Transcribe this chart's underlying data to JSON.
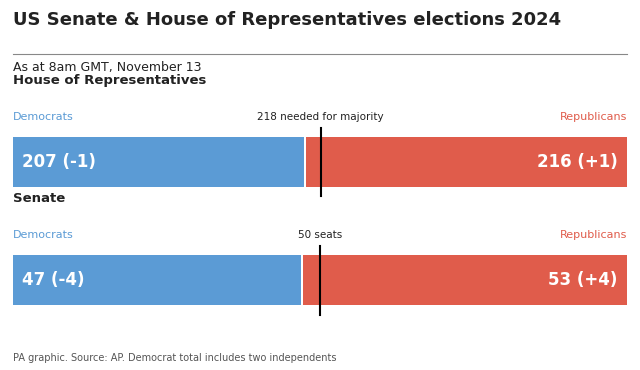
{
  "title": "US Senate & House of Representatives elections 2024",
  "subtitle": "As at 8am GMT, November 13",
  "footnote": "PA graphic. Source: AP. Democrat total includes two independents",
  "background_color": "#ffffff",
  "dem_color": "#5b9bd5",
  "rep_color": "#e05c4b",
  "text_color": "#222222",
  "house": {
    "label": "House of Representatives",
    "dem_seats": 207,
    "dem_change": "-1",
    "rep_seats": 216,
    "rep_change": "+1",
    "total": 435,
    "majority": 218,
    "majority_label": "218 needed for majority",
    "dem_label": "Democrats",
    "rep_label": "Republicans"
  },
  "senate": {
    "label": "Senate",
    "dem_seats": 47,
    "dem_change": "-4",
    "rep_seats": 53,
    "rep_change": "+4",
    "total": 100,
    "majority": 50,
    "majority_label": "50 seats",
    "dem_label": "Democrats",
    "rep_label": "Republicans"
  }
}
